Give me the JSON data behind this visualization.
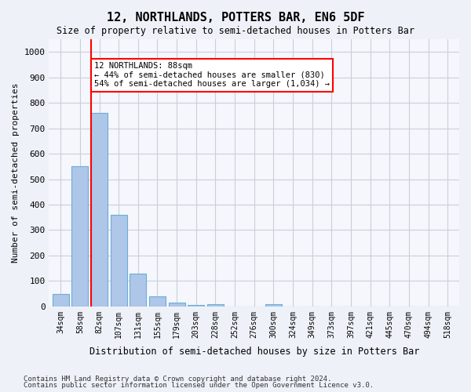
{
  "title": "12, NORTHLANDS, POTTERS BAR, EN6 5DF",
  "subtitle": "Size of property relative to semi-detached houses in Potters Bar",
  "xlabel": "Distribution of semi-detached houses by size in Potters Bar",
  "ylabel": "Number of semi-detached properties",
  "bin_labels": [
    "34sqm",
    "58sqm",
    "82sqm",
    "107sqm",
    "131sqm",
    "155sqm",
    "179sqm",
    "203sqm",
    "228sqm",
    "252sqm",
    "276sqm",
    "300sqm",
    "324sqm",
    "349sqm",
    "373sqm",
    "397sqm",
    "421sqm",
    "445sqm",
    "470sqm",
    "494sqm",
    "518sqm"
  ],
  "bar_heights": [
    50,
    550,
    760,
    360,
    130,
    40,
    15,
    5,
    10,
    0,
    0,
    10,
    0,
    0,
    0,
    0,
    0,
    0,
    0,
    0,
    0
  ],
  "bar_color": "#aec6e8",
  "bar_edge_color": "#6baed6",
  "vline_color": "red",
  "annotation_text": "12 NORTHLANDS: 88sqm\n← 44% of semi-detached houses are smaller (830)\n54% of semi-detached houses are larger (1,034) →",
  "ylim": [
    0,
    1050
  ],
  "yticks": [
    0,
    100,
    200,
    300,
    400,
    500,
    600,
    700,
    800,
    900,
    1000
  ],
  "footnote1": "Contains HM Land Registry data © Crown copyright and database right 2024.",
  "footnote2": "Contains public sector information licensed under the Open Government Licence v3.0.",
  "bg_color": "#eef2f8",
  "plot_bg_color": "#f5f7fc",
  "grid_color": "#c8d0dc"
}
